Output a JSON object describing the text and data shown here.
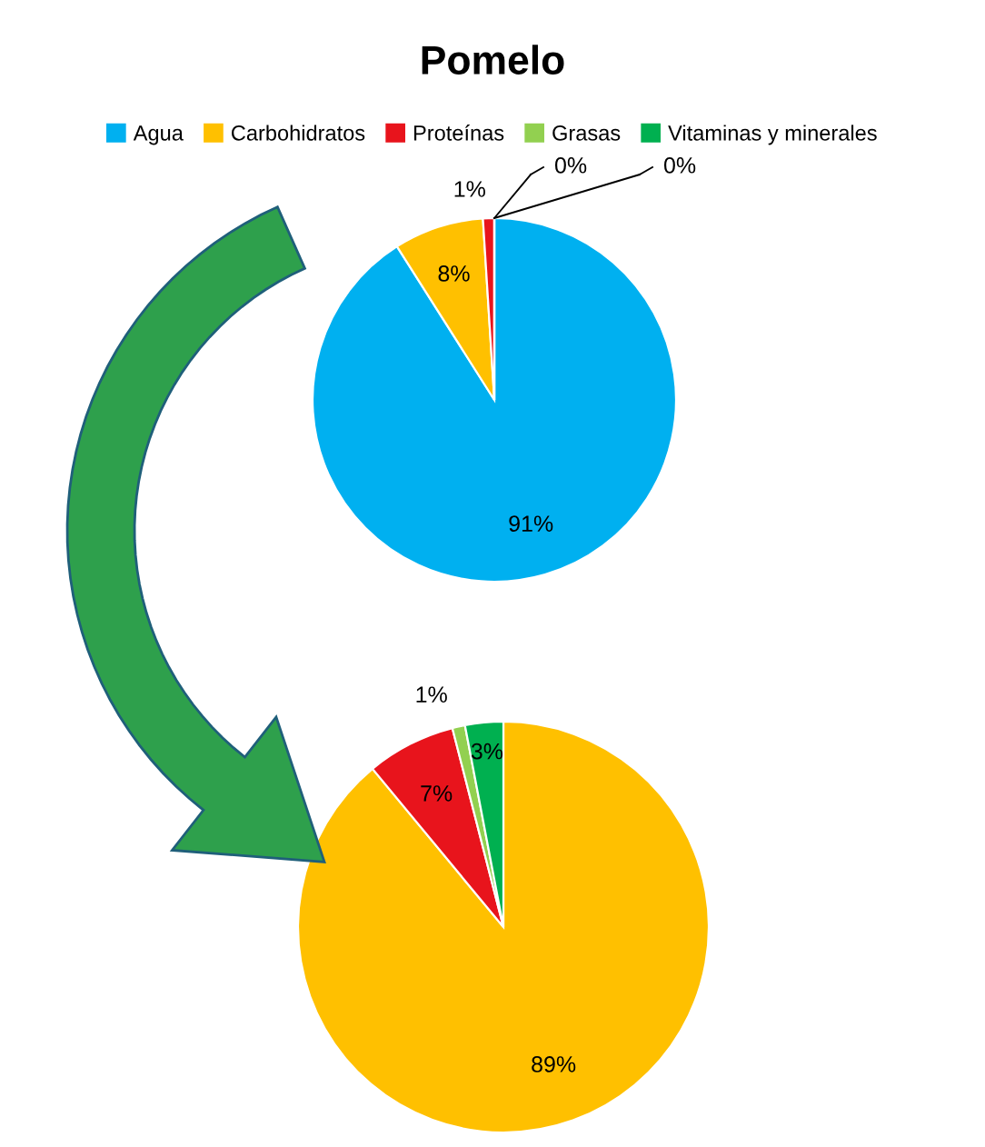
{
  "chart_data": [
    {
      "type": "pie",
      "title": "Pomelo",
      "legend": "top",
      "value_labels": [
        "91%",
        "8%",
        "1%",
        "0%",
        "0%"
      ],
      "categories": [
        "Agua",
        "Carbohidratos",
        "Proteínas",
        "Grasas",
        "Vitaminas y minerales"
      ],
      "values": [
        91,
        8,
        1,
        0,
        0
      ],
      "colors": [
        "#00b0f0",
        "#ffc000",
        "#e8141c",
        "#92d050",
        "#00b050"
      ]
    },
    {
      "type": "pie",
      "value_labels": [
        "89%",
        "7%",
        "1%",
        "3%"
      ],
      "categories": [
        null,
        null,
        null,
        null
      ],
      "values": [
        89,
        7,
        1,
        3
      ],
      "colors": [
        "#ffc000",
        "#e8141c",
        "#92d050",
        "#00b050"
      ]
    }
  ]
}
